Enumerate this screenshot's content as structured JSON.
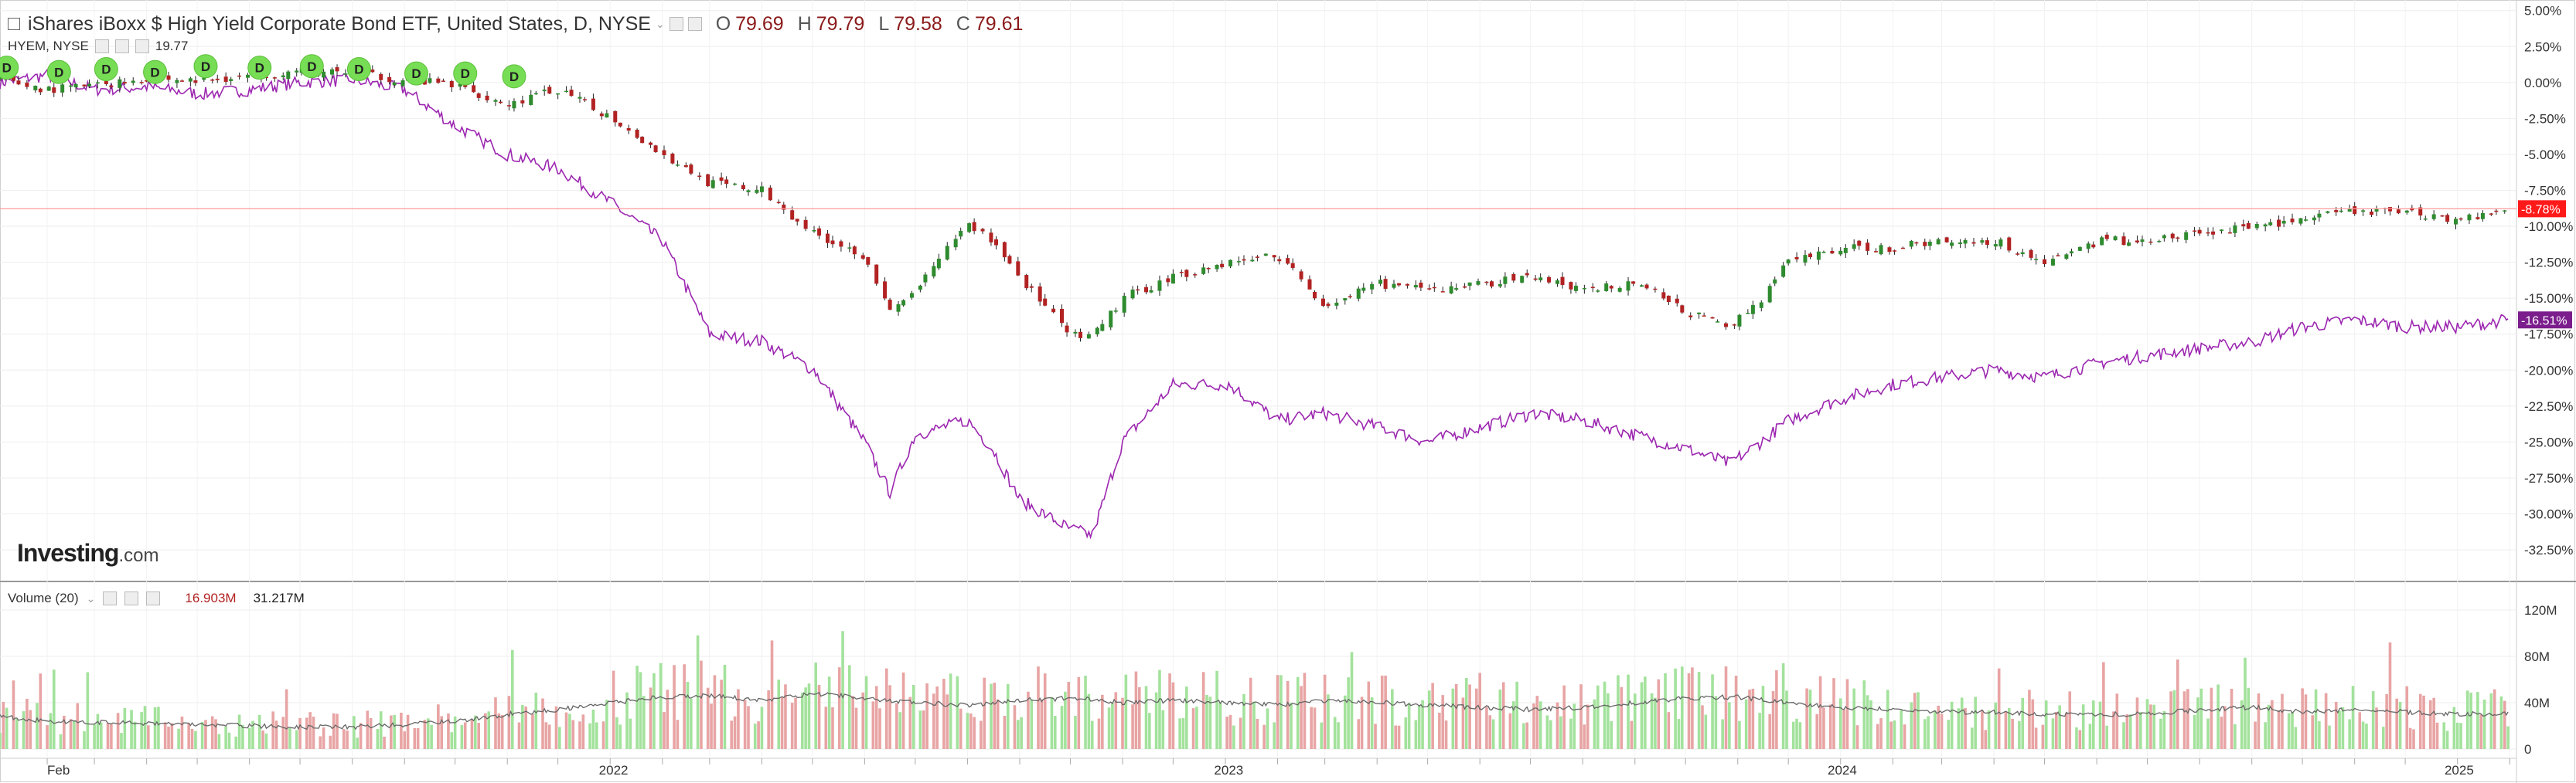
{
  "header": {
    "title": "iShares iBoxx $ High Yield Corporate Bond ETF, United States, D, NYSE",
    "open_label": "O",
    "open": "79.69",
    "high_label": "H",
    "high": "79.79",
    "low_label": "L",
    "low": "79.58",
    "close_label": "C",
    "close": "79.61",
    "compare_symbol": "HYEM, NYSE",
    "compare_value": "19.77"
  },
  "volume_legend": {
    "label": "Volume (20)",
    "value1": "16.903M",
    "value2": "31.217M"
  },
  "brand": {
    "name": "Investing",
    "domain": ".com"
  },
  "colors": {
    "up": "#2e8b2e",
    "down": "#b22222",
    "compare": "#9c27b0",
    "price_tag": "#ff1a1a",
    "compare_tag": "#7b1d8c",
    "dividend": "#77dd55",
    "vol_up": "#a3e29c",
    "vol_down": "#e8a4a4"
  },
  "chart_data": [
    {
      "type": "line",
      "title": "iShares iBoxx $ High Yield Corporate Bond ETF, United States, D, NYSE",
      "x_ticks": [
        "Feb",
        "2022",
        "2023",
        "2024",
        "2025"
      ],
      "y_ticks": [
        "5.00%",
        "2.50%",
        "0.00%",
        "-2.50%",
        "-5.00%",
        "-7.50%",
        "-10.00%",
        "-12.50%",
        "-15.00%",
        "-17.50%",
        "-20.00%",
        "-22.50%",
        "-25.00%",
        "-27.50%",
        "-30.00%",
        "-32.50%"
      ],
      "ylim": [
        -34,
        5.2
      ],
      "x": [
        "2021-01-04",
        "2021-02-01",
        "2021-03-01",
        "2021-04-01",
        "2021-05-03",
        "2021-06-01",
        "2021-07-01",
        "2021-08-02",
        "2021-09-01",
        "2021-10-01",
        "2021-11-01",
        "2021-12-01",
        "2022-01-03",
        "2022-02-01",
        "2022-03-01",
        "2022-04-01",
        "2022-05-02",
        "2022-06-01",
        "2022-06-16",
        "2022-07-01",
        "2022-08-01",
        "2022-08-16",
        "2022-09-01",
        "2022-09-30",
        "2022-10-14",
        "2022-11-01",
        "2022-12-01",
        "2023-01-03",
        "2023-02-01",
        "2023-03-01",
        "2023-04-03",
        "2023-05-01",
        "2023-06-01",
        "2023-07-03",
        "2023-08-01",
        "2023-09-01",
        "2023-10-02",
        "2023-10-27",
        "2023-11-15",
        "2023-12-01",
        "2024-01-02",
        "2024-02-01",
        "2024-03-01",
        "2024-04-01",
        "2024-05-01",
        "2024-06-03",
        "2024-07-01",
        "2024-08-01",
        "2024-09-03",
        "2024-10-01",
        "2024-11-01",
        "2024-12-02",
        "2025-01-02",
        "2025-01-31"
      ],
      "series": [
        {
          "name": "iShares iBoxx $ High Yield Corporate Bond ETF",
          "type": "candlestick",
          "values": [
            0.2,
            -0.5,
            -0.2,
            0.3,
            0.1,
            0.5,
            0.8,
            0.6,
            0.2,
            -0.2,
            -1.5,
            -0.5,
            -2.5,
            -5.0,
            -7.0,
            -7.5,
            -10.5,
            -12.0,
            -16.0,
            -14.5,
            -9.8,
            -11.0,
            -13.5,
            -17.5,
            -17.8,
            -15.0,
            -13.5,
            -12.5,
            -12.0,
            -15.5,
            -14.0,
            -14.5,
            -14.0,
            -13.5,
            -14.5,
            -13.8,
            -16.0,
            -17.0,
            -15.0,
            -12.5,
            -11.5,
            -11.5,
            -11.0,
            -11.0,
            -12.5,
            -11.0,
            -11.0,
            -10.5,
            -10.0,
            -9.5,
            -9.0,
            -9.0,
            -9.5,
            -8.78
          ]
        },
        {
          "name": "HYEM",
          "type": "line",
          "values": [
            0.0,
            0.5,
            -0.5,
            -0.3,
            -0.8,
            -0.5,
            0.0,
            0.2,
            -0.5,
            -3.0,
            -5.0,
            -6.0,
            -8.5,
            -11.0,
            -17.5,
            -18.0,
            -20.0,
            -25.0,
            -28.5,
            -24.5,
            -23.5,
            -25.5,
            -29.0,
            -31.0,
            -31.5,
            -25.0,
            -21.0,
            -21.0,
            -23.5,
            -23.0,
            -24.0,
            -25.0,
            -24.0,
            -23.0,
            -23.5,
            -24.5,
            -25.5,
            -26.5,
            -25.0,
            -23.5,
            -22.0,
            -21.0,
            -20.5,
            -20.0,
            -20.5,
            -19.5,
            -19.0,
            -18.5,
            -18.0,
            -17.0,
            -16.5,
            -17.0,
            -17.0,
            -16.51
          ]
        }
      ],
      "last_price_tag": "-8.78%",
      "compare_tag": "-16.51%",
      "dividend_marker_label": "D",
      "dividend_markers": [
        "2021-01-08",
        "2021-02-08",
        "2021-03-08",
        "2021-04-06",
        "2021-05-06",
        "2021-06-07",
        "2021-07-08",
        "2021-08-05",
        "2021-09-08",
        "2021-10-07",
        "2021-11-05"
      ],
      "dividend_marker_levels": [
        0.6,
        0.3,
        0.5,
        0.3,
        0.7,
        0.6,
        0.7,
        0.5,
        0.2,
        0.2,
        0.0
      ],
      "grid": true
    },
    {
      "type": "bar",
      "title": "Volume (20)",
      "y_ticks": [
        "120M",
        "80M",
        "40M",
        "0"
      ],
      "ylim": [
        0,
        140
      ],
      "note_units": "M",
      "x": [
        "2021-01-04",
        "2021-02-01",
        "2021-03-01",
        "2021-04-01",
        "2021-05-03",
        "2021-06-01",
        "2021-07-01",
        "2021-08-02",
        "2021-09-01",
        "2021-10-01",
        "2021-11-01",
        "2021-12-01",
        "2022-01-03",
        "2022-02-01",
        "2022-03-01",
        "2022-04-01",
        "2022-05-02",
        "2022-06-01",
        "2022-07-01",
        "2022-08-01",
        "2022-09-01",
        "2022-10-03",
        "2022-11-01",
        "2022-12-01",
        "2023-01-03",
        "2023-02-01",
        "2023-03-01",
        "2023-04-03",
        "2023-05-01",
        "2023-06-01",
        "2023-07-03",
        "2023-08-01",
        "2023-09-01",
        "2023-10-02",
        "2023-11-01",
        "2023-12-01",
        "2024-01-02",
        "2024-02-01",
        "2024-03-01",
        "2024-04-01",
        "2024-05-01",
        "2024-06-03",
        "2024-07-01",
        "2024-08-01",
        "2024-09-03",
        "2024-10-01",
        "2024-11-01",
        "2024-12-02",
        "2025-01-02",
        "2025-01-31"
      ],
      "series": [
        {
          "name": "Volume moving average (20)",
          "values": [
            28,
            24,
            23,
            22,
            21,
            20,
            19,
            19,
            21,
            24,
            30,
            34,
            40,
            45,
            46,
            42,
            48,
            44,
            40,
            38,
            42,
            44,
            40,
            42,
            40,
            38,
            42,
            40,
            38,
            36,
            34,
            36,
            40,
            44,
            45,
            40,
            36,
            34,
            32,
            32,
            30,
            30,
            30,
            34,
            36,
            32,
            34,
            32,
            30,
            31
          ]
        }
      ]
    }
  ]
}
